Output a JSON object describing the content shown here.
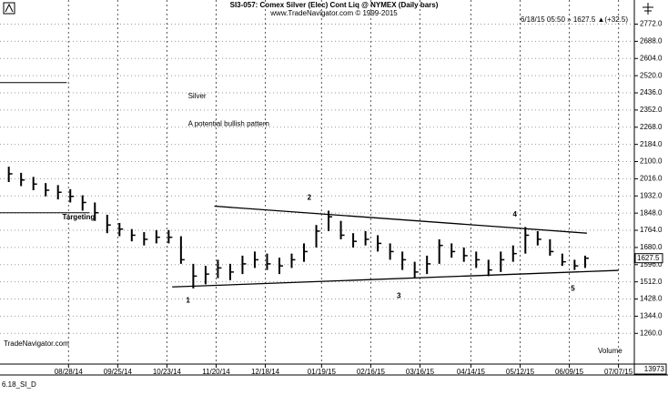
{
  "chart_data": {
    "type": "ohlc",
    "title": "SI3-057:  Comex Silver (Elec) Cont Liq @ NYMEX  (Daily bars)",
    "subtitle": "www.TradeNavigator.com © 1999-2015",
    "quote": "6/18/15 05:50 » 1627.5 ▲(+32.5)",
    "footer": "6.18_SI_D",
    "watermark": "TradeNavigator.com",
    "volume_label": "Volume",
    "volume_last": 13973,
    "color": "#000000",
    "grid": true,
    "xlim": [
      "07/20/14",
      "07/16/15"
    ],
    "xticks": [
      "08/28/14",
      "09/25/14",
      "10/23/14",
      "11/20/14",
      "12/18/14",
      "01/19/15",
      "02/16/15",
      "03/16/15",
      "04/14/15",
      "05/12/15",
      "06/09/15",
      "07/07/15"
    ],
    "ylim": [
      1110,
      2890
    ],
    "yticks": [
      {
        "value": 1260,
        "label": "1260.0"
      },
      {
        "value": 1344,
        "label": "1344.0"
      },
      {
        "value": 1428,
        "label": "1428.0"
      },
      {
        "value": 1512,
        "label": "1512.0"
      },
      {
        "value": 1596,
        "label": "1596.0"
      },
      {
        "value": 1680,
        "label": "1680.0"
      },
      {
        "value": 1764,
        "label": "1764.0"
      },
      {
        "value": 1848,
        "label": "1848.0"
      },
      {
        "value": 1932,
        "label": "1932.0"
      },
      {
        "value": 2016,
        "label": "2016.0"
      },
      {
        "value": 2100,
        "label": "2100.0"
      },
      {
        "value": 2184,
        "label": "2184.0"
      },
      {
        "value": 2268,
        "label": "2268.0"
      },
      {
        "value": 2352,
        "label": "2352.0"
      },
      {
        "value": 2436,
        "label": "2436.0"
      },
      {
        "value": 2520,
        "label": "2520.0"
      },
      {
        "value": 2604,
        "label": "2604.0"
      },
      {
        "value": 2688,
        "label": "2688.0"
      },
      {
        "value": 2772,
        "label": "2772.0"
      }
    ],
    "x": [
      "07/25/14",
      "08/01/14",
      "08/08/14",
      "08/15/14",
      "08/22/14",
      "08/29/14",
      "09/05/14",
      "09/12/14",
      "09/19/14",
      "09/26/14",
      "10/03/14",
      "10/10/14",
      "10/17/14",
      "10/24/14",
      "10/31/14",
      "11/07/14",
      "11/14/14",
      "11/21/14",
      "11/28/14",
      "12/05/14",
      "12/12/14",
      "12/19/14",
      "12/26/14",
      "01/02/15",
      "01/09/15",
      "01/16/15",
      "01/23/15",
      "01/30/15",
      "02/06/15",
      "02/13/15",
      "02/20/15",
      "02/27/15",
      "03/06/15",
      "03/13/15",
      "03/20/15",
      "03/27/15",
      "04/03/15",
      "04/10/15",
      "04/17/15",
      "04/24/15",
      "05/01/15",
      "05/08/15",
      "05/15/15",
      "05/22/15",
      "05/29/15",
      "06/05/15",
      "06/12/15",
      "06/18/15"
    ],
    "high": [
      2075,
      2045,
      2025,
      1995,
      1985,
      1965,
      1935,
      1900,
      1840,
      1800,
      1770,
      1755,
      1765,
      1765,
      1735,
      1600,
      1590,
      1620,
      1600,
      1640,
      1660,
      1650,
      1630,
      1650,
      1700,
      1790,
      1860,
      1810,
      1750,
      1760,
      1740,
      1700,
      1660,
      1610,
      1640,
      1720,
      1700,
      1680,
      1660,
      1620,
      1660,
      1690,
      1780,
      1760,
      1720,
      1650,
      1620,
      1640
    ],
    "low": [
      2000,
      1980,
      1960,
      1930,
      1915,
      1900,
      1860,
      1810,
      1750,
      1735,
      1710,
      1690,
      1700,
      1700,
      1600,
      1480,
      1500,
      1530,
      1520,
      1550,
      1580,
      1570,
      1550,
      1580,
      1610,
      1680,
      1760,
      1720,
      1680,
      1690,
      1660,
      1620,
      1570,
      1530,
      1550,
      1600,
      1630,
      1610,
      1580,
      1540,
      1560,
      1610,
      1650,
      1690,
      1640,
      1590,
      1570,
      1580
    ],
    "close": [
      2040,
      2010,
      1990,
      1960,
      1950,
      1930,
      1900,
      1850,
      1790,
      1770,
      1740,
      1720,
      1730,
      1730,
      1620,
      1540,
      1550,
      1580,
      1560,
      1600,
      1620,
      1600,
      1590,
      1620,
      1660,
      1760,
      1830,
      1740,
      1710,
      1720,
      1700,
      1660,
      1620,
      1560,
      1600,
      1690,
      1660,
      1640,
      1620,
      1570,
      1620,
      1650,
      1740,
      1720,
      1660,
      1610,
      1590,
      1627.5
    ],
    "trendlines": [
      {
        "x": [
          "11/19/14",
          "06/19/15"
        ],
        "y": [
          1882,
          1750
        ]
      },
      {
        "x": [
          "10/26/14",
          "07/07/15"
        ],
        "y": [
          1487,
          1568
        ]
      }
    ],
    "hlines": [
      {
        "value": 2486,
        "end": "08/27/14"
      },
      {
        "value": 1850,
        "end": "09/09/14",
        "label": "Targeting"
      }
    ],
    "annotations": [
      {
        "text": "Silver",
        "x": "11/04/14",
        "y": 2418
      },
      {
        "text": "A potential bullish pattern",
        "x": "11/04/14",
        "y": 2282
      },
      {
        "text": "1",
        "x": "11/04/14",
        "y": 1419
      },
      {
        "text": "2",
        "x": "01/12/15",
        "y": 1923
      },
      {
        "text": "3",
        "x": "03/04/15",
        "y": 1442
      },
      {
        "text": "4",
        "x": "05/09/15",
        "y": 1841
      },
      {
        "text": "5",
        "x": "06/11/15",
        "y": 1478
      }
    ]
  }
}
